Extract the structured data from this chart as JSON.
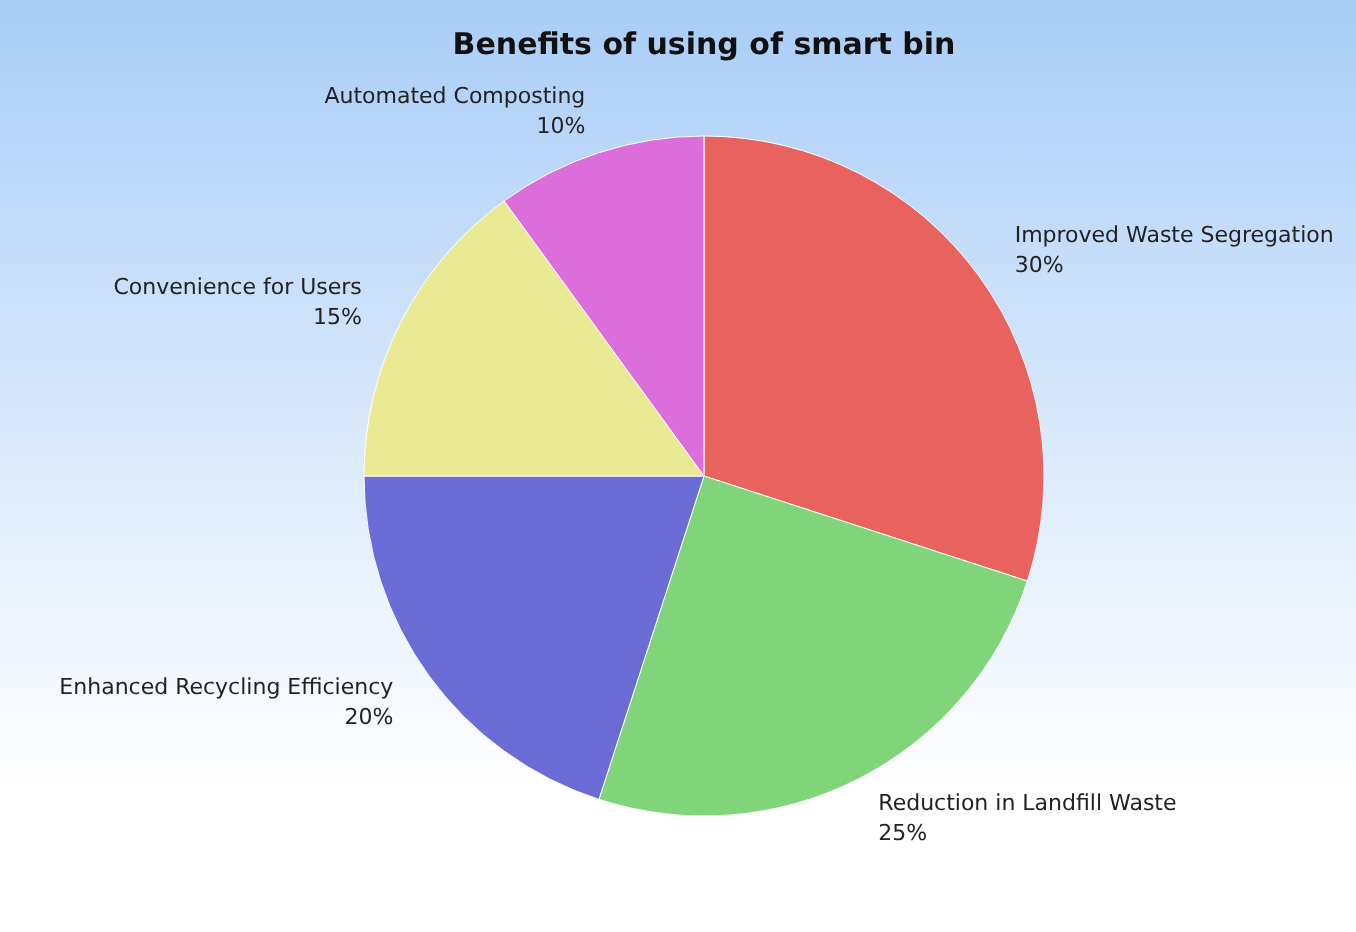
{
  "chart_data": {
    "type": "pie",
    "title": "Benefits of using of smart bin",
    "categories": [
      "Improved Waste Segregation",
      "Reduction in Landfill Waste",
      "Enhanced Recycling Efficiency",
      "Convenience for Users",
      "Automated Composting"
    ],
    "values": [
      30,
      25,
      20,
      15,
      10
    ],
    "value_labels": [
      "30%",
      "25%",
      "20%",
      "15%",
      "10%"
    ],
    "colors": [
      "#e8625e",
      "#80d47a",
      "#6c6cd6",
      "#eaea94",
      "#dc6edc"
    ]
  }
}
